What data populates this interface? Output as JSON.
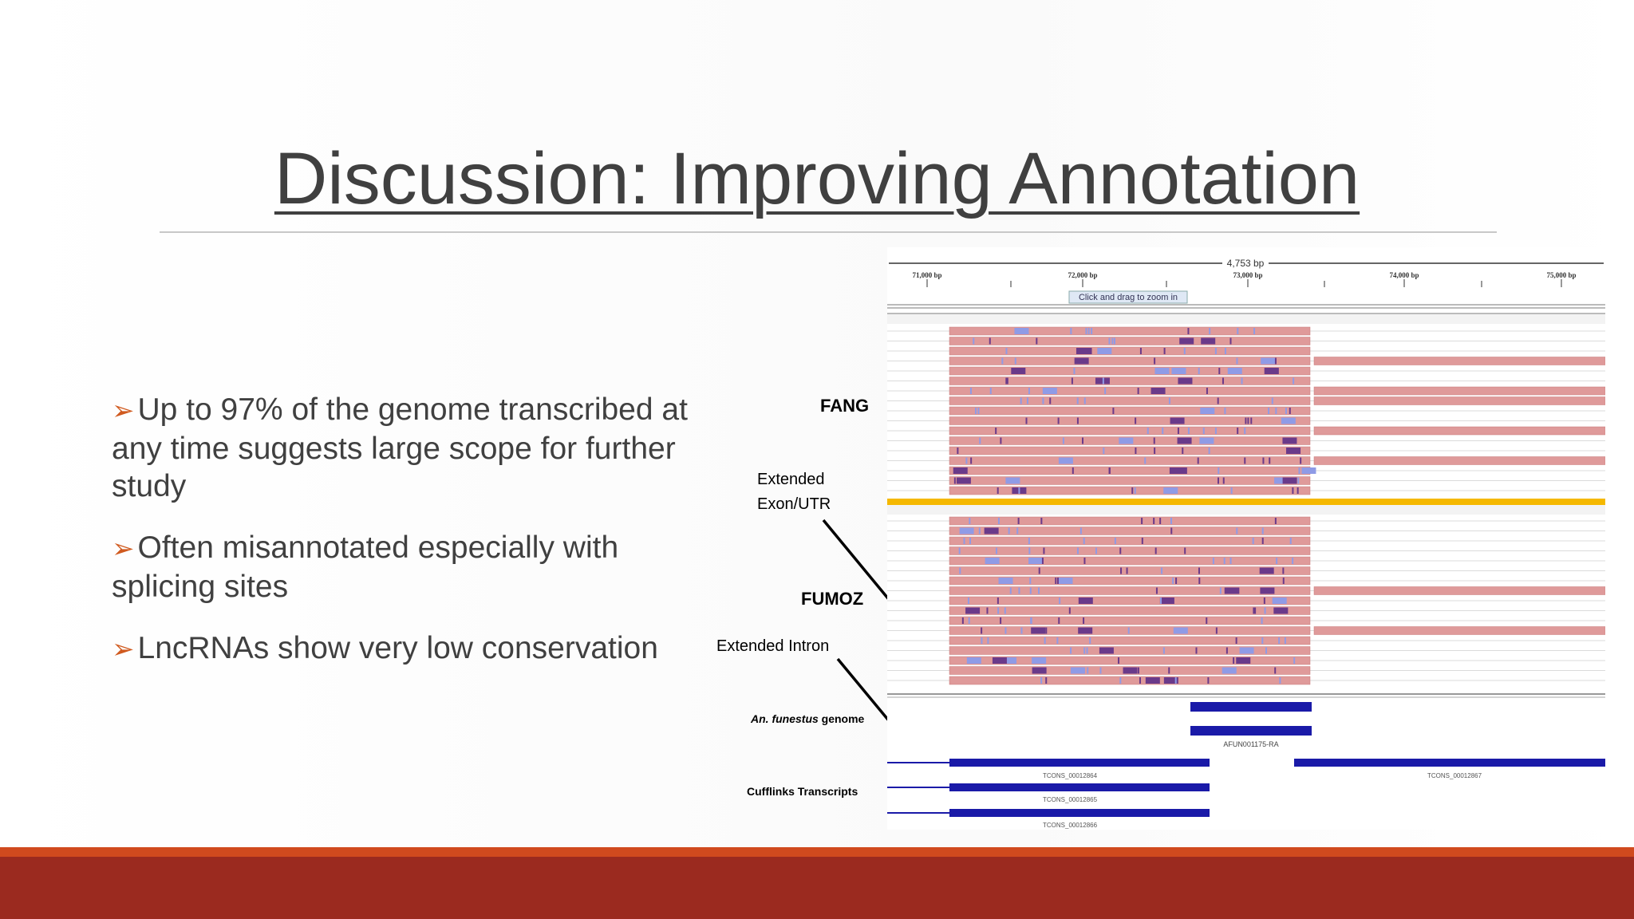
{
  "slide": {
    "title": "Discussion: Improving Annotation",
    "bullets": [
      "Up to 97% of the genome transcribed at any time suggests large scope for further study",
      "Often misannotated especially with splicing sites",
      "LncRNAs show very low conservation"
    ],
    "bullet_glyph": "➢"
  },
  "figure": {
    "labels": {
      "fang": "FANG",
      "extended_exon_line1": "Extended",
      "extended_exon_line2": "Exon/UTR",
      "fumoz": "FUMOZ",
      "extended_intron": "Extended Intron",
      "genome_italic": "An. funestus",
      "genome_rest": " genome",
      "cufflinks": "Cufflinks Transcripts"
    },
    "igv": {
      "span_label": "4,753 bp",
      "ticks": [
        "71,000 bp",
        "72,000 bp",
        "73,000 bp",
        "74,000 bp",
        "75,000 bp"
      ],
      "zoom_hint": "Click and drag to zoom in",
      "gene_label": "AFUN001175-RA",
      "transcripts": [
        "TCONS_00012864",
        "TCONS_00012865",
        "TCONS_00012866",
        "TCONS_00012867"
      ],
      "colors": {
        "read": "#df9a9a",
        "read_edge": "#c87878",
        "mismatch": "#8f9be6",
        "gene": "#1a1aa8",
        "separator": "#f5b800"
      }
    }
  },
  "theme": {
    "band": "#9b2a1f",
    "band_accent": "#d04a1e",
    "text": "#404040",
    "arrow": "#d05a1f"
  }
}
